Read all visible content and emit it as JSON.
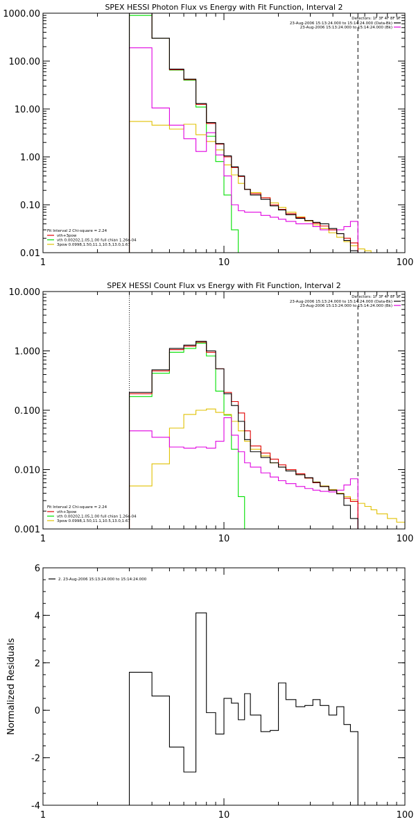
{
  "chart_data": [
    {
      "type": "line",
      "title": "SPEX HESSI Photon Flux vs Energy with Fit Function, Interval 2",
      "xscale": "log",
      "yscale": "log",
      "xlim": [
        1,
        100
      ],
      "ylim": [
        0.01,
        1000
      ],
      "x_ticks": [
        "1",
        "10",
        "100"
      ],
      "y_ticks": [
        "0.01",
        "0.10",
        "1.00",
        "10.00",
        "100.00",
        "1000.00"
      ],
      "legend_header": "Detectors: 1F 3F 4F 8F 9F",
      "legend": [
        {
          "name": "23-Aug-2006 15:13:24.000 to 15:14:24.000 (Data-Bk)",
          "color": "#000000"
        },
        {
          "name": "23-Aug-2006 15:13:24.000 to 15:14:24.000 (Bk)",
          "color": "#e000e0"
        }
      ],
      "fit_legend": {
        "header": "Fit Interval  2   Chi-square = 2.24",
        "items": [
          {
            "name": "vth+3pow",
            "color": "#e00000"
          },
          {
            "name": "vth 0.00202,1.05,1.00  full chian 1.26e-04",
            "color": "#00e000"
          },
          {
            "name": "3pow 0.0998,1.50,11.1,10.5,13.0,1.67",
            "color": "#e0c000"
          }
        ]
      },
      "vlines": [
        {
          "x": 3,
          "style": "dotted"
        },
        {
          "x": 55,
          "style": "dashed"
        }
      ],
      "bin_edges": [
        3,
        4,
        5,
        6,
        7,
        8,
        9,
        10,
        11,
        12,
        13,
        14,
        16,
        18,
        20,
        22,
        25,
        28,
        31,
        34,
        38,
        42,
        46,
        50,
        55,
        60,
        65,
        70
      ],
      "series": [
        {
          "name": "Data-Bk",
          "color": "#000000",
          "values": [
            1000,
            300,
            68,
            42,
            13,
            5.2,
            1.9,
            1.05,
            0.62,
            0.4,
            0.21,
            0.16,
            0.13,
            0.095,
            0.078,
            0.062,
            0.052,
            0.047,
            0.043,
            0.04,
            0.032,
            0.025,
            0.018,
            0.011
          ]
        },
        {
          "name": "vth+3pow",
          "color": "#e00000",
          "values": [
            1000,
            300,
            66,
            41,
            12.5,
            5.0,
            1.85,
            1.0,
            0.6,
            0.39,
            0.21,
            0.17,
            0.14,
            0.1,
            0.08,
            0.065,
            0.054,
            0.047,
            0.041,
            0.036,
            0.03,
            0.025,
            0.02,
            0.016
          ]
        },
        {
          "name": "vth",
          "color": "#00e000",
          "values": [
            900,
            300,
            65,
            40,
            11,
            2.7,
            0.8,
            0.16,
            0.03
          ]
        },
        {
          "name": "3pow",
          "color": "#e0c000",
          "values": [
            5.5,
            4.6,
            3.8,
            4.8,
            2.9,
            2.1,
            1.4,
            0.68,
            0.42,
            0.28,
            0.21,
            0.18,
            0.14,
            0.11,
            0.088,
            0.07,
            0.056,
            0.046,
            0.038,
            0.032,
            0.026,
            0.021,
            0.017,
            0.014,
            0.012,
            0.011,
            0.01
          ]
        },
        {
          "name": "Bk",
          "color": "#e000e0",
          "values": [
            190,
            10.5,
            4.6,
            2.4,
            1.3,
            3.2,
            1.1,
            0.4,
            0.1,
            0.075,
            0.07,
            0.07,
            0.06,
            0.055,
            0.05,
            0.045,
            0.04,
            0.04,
            0.035,
            0.03,
            0.03,
            0.03,
            0.035,
            0.045
          ]
        }
      ]
    },
    {
      "type": "line",
      "title": "SPEX HESSI Count Flux vs Energy with Fit Function, Interval 2",
      "xscale": "log",
      "yscale": "log",
      "xlim": [
        1,
        100
      ],
      "ylim": [
        0.001,
        10
      ],
      "x_ticks": [
        "1",
        "10",
        "100"
      ],
      "y_ticks": [
        "0.001",
        "0.010",
        "0.100",
        "1.000",
        "10.000"
      ],
      "legend_header": "Detectors: 1F 3F 4F 8F 9F",
      "legend": [
        {
          "name": "23-Aug-2006 15:13:24.000 to 15:14:24.000 (Data-Bk)",
          "color": "#000000"
        },
        {
          "name": "23-Aug-2006 15:13:24.000 to 15:14:24.000 (Bk)",
          "color": "#e000e0"
        }
      ],
      "fit_legend": {
        "header": "Fit Interval  2   Chi-square = 2.24",
        "items": [
          {
            "name": "vth+3pow",
            "color": "#e00000"
          },
          {
            "name": "vth 0.00202,1.05,1.00  full chian 1.26e-04",
            "color": "#00e000"
          },
          {
            "name": "3pow 0.0998,1.50,11.1,10.5,13.0,1.67",
            "color": "#e0c000"
          }
        ]
      },
      "vlines": [
        {
          "x": 3,
          "style": "dotted"
        },
        {
          "x": 55,
          "style": "dashed"
        }
      ],
      "bin_edges": [
        3,
        4,
        5,
        6,
        7,
        8,
        9,
        10,
        11,
        12,
        13,
        14,
        16,
        18,
        20,
        22,
        25,
        28,
        31,
        34,
        38,
        42,
        46,
        50,
        55,
        60,
        65,
        70,
        80,
        90,
        100
      ],
      "series": [
        {
          "name": "Data-Bk",
          "color": "#000000",
          "values": [
            0.2,
            0.48,
            1.1,
            1.25,
            1.45,
            1.0,
            0.5,
            0.19,
            0.12,
            0.065,
            0.032,
            0.02,
            0.016,
            0.013,
            0.011,
            0.0095,
            0.0082,
            0.0073,
            0.0061,
            0.0052,
            0.0045,
            0.0039,
            0.0025,
            0.0015
          ]
        },
        {
          "name": "vth+3pow",
          "color": "#e00000",
          "values": [
            0.19,
            0.46,
            1.05,
            1.2,
            1.4,
            0.95,
            0.5,
            0.2,
            0.14,
            0.09,
            0.045,
            0.025,
            0.019,
            0.015,
            0.012,
            0.01,
            0.0085,
            0.0072,
            0.006,
            0.0052,
            0.0045,
            0.0039,
            0.0033,
            0.0029
          ]
        },
        {
          "name": "vth",
          "color": "#00e000",
          "values": [
            0.17,
            0.42,
            0.95,
            1.1,
            1.35,
            0.82,
            0.21,
            0.083,
            0.022,
            0.0035,
            0.0005
          ]
        },
        {
          "name": "3pow",
          "color": "#e0c000",
          "values": [
            0.0053,
            0.0125,
            0.05,
            0.085,
            0.1,
            0.105,
            0.092,
            0.085,
            0.065,
            0.045,
            0.03,
            0.022,
            0.017,
            0.013,
            0.011,
            0.0095,
            0.0082,
            0.0072,
            0.0062,
            0.0053,
            0.0046,
            0.004,
            0.0035,
            0.0031,
            0.0027,
            0.0024,
            0.0021,
            0.0018,
            0.0015,
            0.0013
          ]
        },
        {
          "name": "Bk",
          "color": "#e000e0",
          "values": [
            0.045,
            0.035,
            0.024,
            0.023,
            0.024,
            0.023,
            0.03,
            0.075,
            0.038,
            0.02,
            0.013,
            0.011,
            0.0088,
            0.0075,
            0.0065,
            0.0058,
            0.0052,
            0.0048,
            0.0045,
            0.0043,
            0.0042,
            0.0045,
            0.0055,
            0.007
          ]
        }
      ]
    },
    {
      "type": "line",
      "title": "",
      "ylabel": "Normalized Residuals",
      "xscale": "log",
      "xlim": [
        1,
        100
      ],
      "ylim": [
        -4,
        6
      ],
      "x_ticks": [
        "1",
        "10",
        "100"
      ],
      "y_ticks": [
        "-4",
        "-2",
        "0",
        "2",
        "4",
        "6"
      ],
      "legend": [
        {
          "name": "2. 23-Aug-2006 15:13:24.000 to 15:14:24.000",
          "color": "#000000"
        }
      ],
      "bin_edges": [
        3,
        4,
        5,
        6,
        7,
        8,
        9,
        10,
        11,
        12,
        13,
        14,
        16,
        18,
        20,
        22,
        25,
        28,
        31,
        34,
        38,
        42,
        46,
        50,
        55
      ],
      "series": [
        {
          "name": "",
          "color": "#000000",
          "values": [
            1.6,
            0.6,
            -1.55,
            -2.6,
            4.1,
            -0.1,
            -1.0,
            0.5,
            0.3,
            -0.4,
            0.7,
            -0.2,
            -0.9,
            -0.85,
            1.15,
            0.45,
            0.15,
            0.2,
            0.45,
            0.2,
            -0.2,
            0.15,
            -0.6,
            -0.9
          ]
        }
      ]
    }
  ]
}
